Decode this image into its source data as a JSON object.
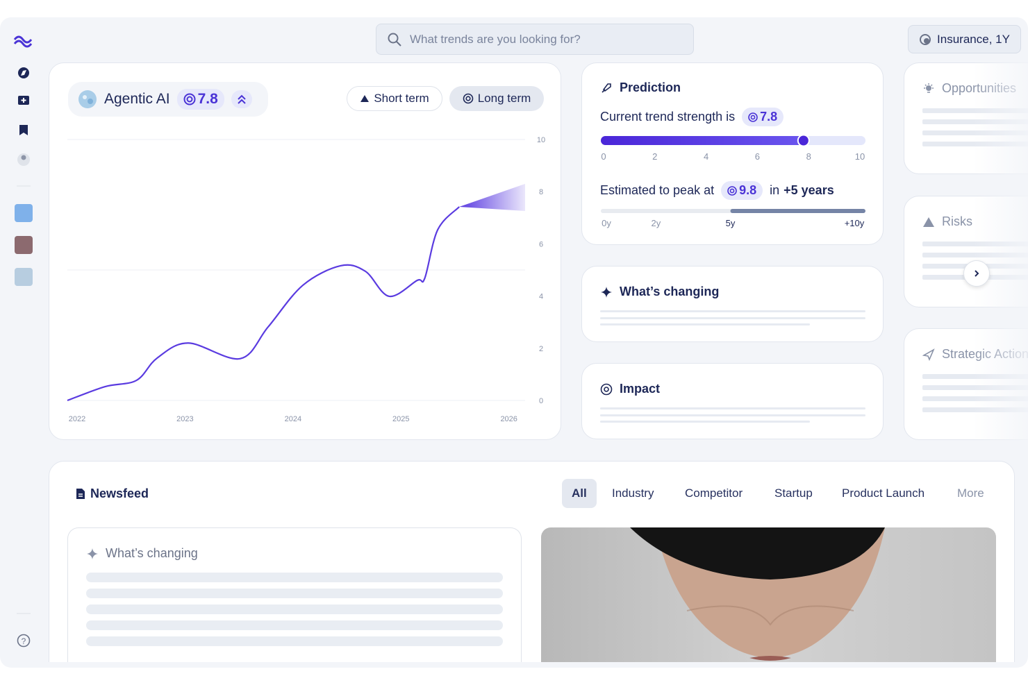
{
  "header": {
    "search_placeholder": "What trends are you looking for?",
    "context": "Insurance, 1Y"
  },
  "trend": {
    "name": "Agentic AI",
    "score": 7.8,
    "tabs": [
      "Short term",
      "Long term"
    ],
    "active_tab": 1
  },
  "chart_data": {
    "type": "line",
    "x": [
      2021.91,
      2022.26,
      2022.55,
      2022.74,
      2023.03,
      2023.51,
      2023.77,
      2024.09,
      2024.44,
      2024.67,
      2024.89,
      2025.15,
      2025.22,
      2025.34,
      2025.54
    ],
    "values": [
      0,
      0.53,
      0.77,
      1.62,
      2.2,
      1.6,
      2.82,
      4.41,
      5.16,
      4.95,
      3.99,
      4.6,
      4.68,
      6.54,
      7.42
    ],
    "color": "#5a3be0",
    "forecast": {
      "x": [
        2025.54,
        2026.15
      ],
      "upper": [
        7.42,
        8.3
      ],
      "lower": [
        7.42,
        7.26
      ]
    },
    "xlim": [
      2021.91,
      2026.15
    ],
    "xticks": [
      2022,
      2023,
      2024,
      2025,
      2026
    ],
    "ylim": [
      0,
      10
    ],
    "yticks": [
      0,
      2,
      4,
      6,
      8,
      10
    ],
    "grid_lines": [
      0,
      5,
      10
    ]
  },
  "prediction": {
    "title": "Prediction",
    "strength_text": "Current trend strength is",
    "strength": 7.8,
    "scale": [
      0,
      10
    ],
    "scale_ticks": [
      0,
      2,
      4,
      6,
      8,
      10
    ],
    "peak_text": "Estimated to peak at",
    "peak": 9.8,
    "peak_in_text": "in",
    "peak_in": {
      "value": 5,
      "label": "+5 years"
    },
    "timeline_range": [
      0,
      10
    ],
    "timeline_ticks": [
      {
        "value": 0,
        "label": "0y"
      },
      {
        "value": 2,
        "label": "2y"
      },
      {
        "value": 5,
        "label": "5y"
      },
      {
        "value": 10,
        "label": "+10y"
      }
    ]
  },
  "cards": {
    "whats_changing": "What’s changing",
    "impact": "Impact",
    "side": [
      "Opportunities",
      "Risks",
      "Strategic Actions"
    ]
  },
  "newsfeed": {
    "title": "Newsfeed",
    "filters": [
      "All",
      "Industry",
      "Competitor",
      "Startup",
      "Product Launch",
      "More"
    ],
    "active_filter": 0,
    "card_title": "What’s changing"
  }
}
